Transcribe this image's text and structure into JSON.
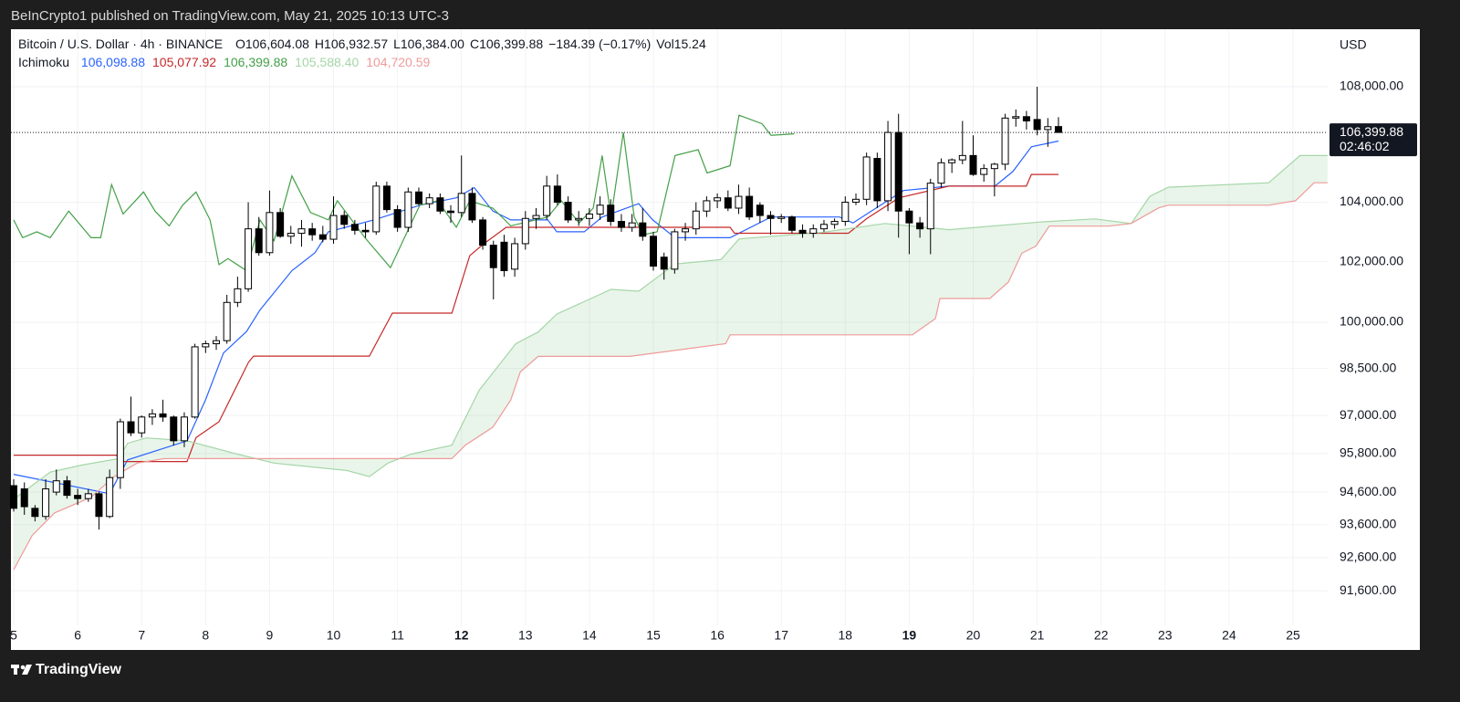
{
  "chart_data": {
    "type": "candlestick",
    "attribution": "BeInCrypto1 published on TradingView.com, May 21, 2025 10:13 UTC-3",
    "brand": "TradingView",
    "symbol": "Bitcoin / U.S. Dollar · 4h · BINANCE",
    "ohlc_labels": [
      "O106,604.08",
      "H106,932.57",
      "L106,384.00",
      "C106,399.88",
      "−184.39 (−0.17%)",
      "Vol15.24"
    ],
    "currency": "USD",
    "last_price_label": "106,399.88",
    "countdown": "02:46:02",
    "log_scale": true,
    "grid": true,
    "ylim": [
      90570,
      110050
    ],
    "yticks": [
      {
        "value": 108000,
        "label": "108,000.00"
      },
      {
        "value": 104000,
        "label": "104,000.00"
      },
      {
        "value": 102000,
        "label": "102,000.00"
      },
      {
        "value": 100000,
        "label": "100,000.00"
      },
      {
        "value": 98500,
        "label": "98,500.00"
      },
      {
        "value": 97000,
        "label": "97,000.00"
      },
      {
        "value": 95800,
        "label": "95,800.00"
      },
      {
        "value": 94600,
        "label": "94,600.00"
      },
      {
        "value": 93600,
        "label": "93,600.00"
      },
      {
        "value": 92600,
        "label": "92,600.00"
      },
      {
        "value": 91600,
        "label": "91,600.00"
      }
    ],
    "xlim": [
      4.957,
      25.542
    ],
    "xticks": [
      5,
      6,
      7,
      8,
      9,
      10,
      11,
      12,
      13,
      14,
      15,
      16,
      17,
      18,
      19,
      20,
      21,
      22,
      23,
      24,
      25
    ],
    "bold_xticks": [
      12,
      19
    ],
    "candles": {
      "up_color": "#ffffff",
      "down_color": "#000000",
      "edge_color": "#000000",
      "x": [
        5,
        5.167,
        5.333,
        5.5,
        5.667,
        5.833,
        6,
        6.167,
        6.333,
        6.5,
        6.667,
        6.833,
        7,
        7.167,
        7.333,
        7.5,
        7.667,
        7.833,
        8,
        8.167,
        8.333,
        8.5,
        8.667,
        8.833,
        9,
        9.167,
        9.333,
        9.5,
        9.667,
        9.833,
        10,
        10.167,
        10.333,
        10.5,
        10.667,
        10.833,
        11,
        11.167,
        11.333,
        11.5,
        11.667,
        11.833,
        12,
        12.167,
        12.333,
        12.5,
        12.667,
        12.833,
        13,
        13.167,
        13.333,
        13.5,
        13.667,
        13.833,
        14,
        14.167,
        14.333,
        14.5,
        14.667,
        14.833,
        15,
        15.167,
        15.333,
        15.5,
        15.667,
        15.833,
        16,
        16.167,
        16.333,
        16.5,
        16.667,
        16.833,
        17,
        17.167,
        17.333,
        17.5,
        17.667,
        17.833,
        18,
        18.167,
        18.333,
        18.5,
        18.667,
        18.833,
        19,
        19.167,
        19.333,
        19.5,
        19.667,
        19.833,
        20,
        20.167,
        20.333,
        20.5,
        20.667,
        20.833,
        21,
        21.167,
        21.333
      ],
      "open": [
        94800,
        94700,
        94100,
        93850,
        94600,
        94950,
        94500,
        94400,
        94550,
        93850,
        95050,
        96800,
        96450,
        96950,
        97050,
        96950,
        96200,
        96950,
        99200,
        99300,
        99400,
        100650,
        101100,
        103100,
        102300,
        103650,
        102850,
        102950,
        103100,
        102900,
        102750,
        103550,
        103250,
        103050,
        103000,
        104550,
        103750,
        103150,
        104350,
        103950,
        104150,
        103700,
        103650,
        104300,
        103400,
        102550,
        102650,
        101750,
        102600,
        103450,
        103550,
        104550,
        104000,
        103400,
        103450,
        103600,
        103900,
        103350,
        103150,
        103300,
        102850,
        102150,
        101750,
        103000,
        103100,
        103700,
        104050,
        104150,
        103800,
        104200,
        103900,
        103550,
        103450,
        103500,
        103050,
        102950,
        103100,
        103250,
        103350,
        104000,
        104100,
        105500,
        104050,
        106400,
        103700,
        103300,
        103100,
        104650,
        105350,
        105450,
        105600,
        104950,
        105150,
        105300,
        106900,
        106950,
        106850,
        106500,
        106604.08
      ],
      "high": [
        95000,
        94900,
        94200,
        95000,
        95300,
        95100,
        94700,
        94700,
        94600,
        95300,
        96900,
        97600,
        97000,
        97200,
        97500,
        97000,
        97100,
        99300,
        99400,
        99550,
        100900,
        101500,
        104000,
        103500,
        104400,
        103800,
        103200,
        103400,
        103300,
        103200,
        104200,
        103700,
        103400,
        103300,
        104700,
        104700,
        103900,
        104500,
        104500,
        104300,
        104300,
        103900,
        105600,
        104500,
        103500,
        102700,
        102900,
        102800,
        103700,
        103800,
        104900,
        104950,
        104200,
        103700,
        103800,
        104200,
        104100,
        103600,
        103600,
        103800,
        103000,
        102300,
        103100,
        103300,
        104000,
        104200,
        104300,
        104400,
        104600,
        104500,
        104000,
        103700,
        103600,
        103550,
        103250,
        103250,
        103400,
        103450,
        104200,
        104300,
        105700,
        105700,
        106800,
        107050,
        103800,
        103500,
        104800,
        105500,
        105500,
        106800,
        106300,
        105300,
        105350,
        107050,
        107200,
        107150,
        108000,
        106900,
        106932.57
      ],
      "low": [
        94000,
        93900,
        93700,
        93750,
        94500,
        94400,
        94200,
        94300,
        93450,
        93800,
        94700,
        96350,
        96300,
        96700,
        96800,
        96050,
        96000,
        96900,
        99000,
        99100,
        99300,
        100500,
        101000,
        102200,
        102200,
        102800,
        102600,
        102500,
        102700,
        102650,
        102600,
        103100,
        102900,
        102800,
        102900,
        103650,
        103000,
        103000,
        103900,
        103800,
        103600,
        103300,
        103500,
        103300,
        102400,
        100750,
        101500,
        101500,
        102400,
        103100,
        103400,
        103900,
        103300,
        103200,
        103200,
        103400,
        103200,
        103000,
        103000,
        102700,
        101700,
        101400,
        101600,
        102700,
        102900,
        103500,
        103800,
        103700,
        103600,
        103400,
        103300,
        102900,
        103300,
        102950,
        102800,
        102800,
        103000,
        103100,
        103200,
        103900,
        103900,
        103800,
        103700,
        102800,
        102250,
        102800,
        102250,
        104500,
        105000,
        105300,
        104900,
        104700,
        104200,
        105100,
        106600,
        106500,
        106300,
        105900,
        106384
      ],
      "close": [
        94100,
        94150,
        93850,
        94700,
        94950,
        94500,
        94400,
        94550,
        93850,
        95050,
        96800,
        96450,
        96950,
        97050,
        96950,
        96200,
        96950,
        99200,
        99300,
        99400,
        100650,
        101100,
        103100,
        102300,
        103650,
        102850,
        102950,
        103100,
        102900,
        102750,
        103550,
        103250,
        103050,
        103000,
        104550,
        103750,
        103150,
        104350,
        103950,
        104150,
        103700,
        103650,
        104300,
        103400,
        102550,
        101800,
        101700,
        102600,
        103450,
        103550,
        104550,
        104000,
        103400,
        103450,
        103600,
        103900,
        103350,
        103150,
        103300,
        102850,
        101850,
        101750,
        103000,
        103100,
        103700,
        104050,
        104150,
        103800,
        104200,
        103500,
        103550,
        103450,
        103500,
        103050,
        102950,
        103100,
        103250,
        103350,
        104000,
        104100,
        105550,
        104050,
        106400,
        103700,
        103300,
        103100,
        104650,
        105350,
        105450,
        105600,
        104950,
        105150,
        105300,
        106900,
        106950,
        106800,
        106500,
        106600,
        106399.88
      ]
    },
    "ichimoku": {
      "label": "Ichimoku",
      "cloud_color": "rgba(76,175,80,0.12)",
      "lines": [
        {
          "color": "#2962ff",
          "legend_value": "106,098.88",
          "x": [
            5.0,
            6.5,
            6.78,
            7.71,
            8.0,
            8.28,
            8.64,
            8.85,
            9.35,
            9.71,
            9.92,
            10.63,
            11.35,
            11.92,
            12.2,
            12.49,
            12.77,
            13.35,
            13.49,
            13.92,
            14.2,
            14.77,
            14.99,
            15.34,
            16.2,
            16.84,
            17.91,
            18.12,
            18.48,
            18.91,
            19.62,
            20.34,
            20.62,
            20.91,
            21.333
          ],
          "values": [
            95150,
            94550,
            95600,
            96200,
            97500,
            99000,
            99700,
            100400,
            101700,
            102300,
            103000,
            103400,
            103900,
            104150,
            104500,
            103700,
            103400,
            103400,
            103000,
            103000,
            103500,
            103950,
            103400,
            102800,
            102800,
            103500,
            103500,
            103300,
            103800,
            104400,
            104550,
            104550,
            105050,
            105900,
            106100
          ]
        },
        {
          "color": "#c62828",
          "legend_value": "105,077.92",
          "x": [
            5.0,
            6.61,
            6.64,
            7.71,
            7.85,
            8.21,
            8.67,
            8.75,
            10.56,
            10.92,
            11.85,
            12.13,
            12.35,
            12.7,
            16.2,
            16.27,
            18.05,
            18.34,
            18.84,
            19.62,
            20.83,
            20.91,
            21.333
          ],
          "values": [
            95750,
            95750,
            95550,
            95550,
            96300,
            96800,
            98700,
            98900,
            98900,
            100300,
            100300,
            102200,
            102600,
            103150,
            103150,
            102950,
            102950,
            103450,
            104150,
            104550,
            104550,
            104950,
            104950
          ]
        },
        {
          "color": "#43a047",
          "legend_value": "106,399.88",
          "x": [
            5.0,
            5.14,
            5.36,
            5.57,
            5.86,
            6.21,
            6.36,
            6.53,
            6.71,
            7.03,
            7.21,
            7.43,
            7.64,
            7.85,
            8.07,
            8.21,
            8.35,
            8.64,
            8.85,
            9.07,
            9.35,
            9.64,
            9.92,
            10.06,
            10.49,
            10.89,
            11.13,
            11.35,
            11.63,
            11.92,
            12.13,
            12.49,
            12.77,
            13.35,
            13.56,
            13.84,
            14.06,
            14.2,
            14.34,
            14.53,
            14.7,
            14.84,
            15.06,
            15.34,
            15.7,
            15.84,
            16.2,
            16.34,
            16.7,
            16.84,
            17.2
          ],
          "values": [
            103400,
            102800,
            103000,
            102800,
            103700,
            102800,
            102800,
            104600,
            103600,
            104350,
            103700,
            103200,
            103900,
            104350,
            103400,
            101900,
            102100,
            101700,
            103400,
            102700,
            104900,
            103650,
            103400,
            104050,
            102800,
            101800,
            102900,
            103900,
            104050,
            103150,
            104050,
            103800,
            103200,
            103500,
            104050,
            103300,
            103800,
            105600,
            103500,
            106400,
            103500,
            102900,
            103000,
            105600,
            105800,
            105000,
            105250,
            107000,
            106700,
            106300,
            106350
          ]
        },
        {
          "color": "#a5d6a7",
          "legend_value": "105,588.40",
          "x": [
            5.0,
            5.57,
            6.07,
            6.64,
            6.78,
            7.07,
            7.71,
            8.5,
            9.07,
            10.21,
            10.56,
            10.85,
            11.21,
            11.85,
            11.99,
            12.28,
            12.56,
            12.85,
            13.2,
            13.49,
            14.34,
            14.77,
            15.34,
            16.06,
            16.34,
            17.62,
            18.62,
            19.62,
            21.05,
            21.9,
            22.47,
            22.76,
            23.05,
            24.62,
            25.11,
            25.54
          ],
          "values": [
            94380,
            95220,
            95440,
            95640,
            96120,
            96290,
            96200,
            95780,
            95500,
            95270,
            95080,
            95500,
            95780,
            96060,
            96630,
            97810,
            98540,
            99300,
            99680,
            100270,
            101080,
            101020,
            101920,
            102070,
            102760,
            102975,
            103280,
            103070,
            103330,
            103435,
            103280,
            104200,
            104510,
            104665,
            105600,
            105600
          ]
        },
        {
          "color": "#ef9a9a",
          "legend_value": "104,720.59",
          "x": [
            5.0,
            5.29,
            5.64,
            6.21,
            6.57,
            6.93,
            7.35,
            11.85,
            12.06,
            12.49,
            12.77,
            12.92,
            13.2,
            14.63,
            16.13,
            16.2,
            19.05,
            19.41,
            19.48,
            20.26,
            20.55,
            20.76,
            20.98,
            21.19,
            22.12,
            22.47,
            22.9,
            23.05,
            24.62,
            25.04,
            25.33,
            25.54
          ],
          "values": [
            92230,
            93270,
            93960,
            94440,
            95080,
            95500,
            95640,
            95640,
            96060,
            96630,
            97490,
            98390,
            98890,
            98890,
            99300,
            99590,
            99590,
            100120,
            100780,
            100780,
            101320,
            102280,
            102520,
            103190,
            103190,
            103280,
            103810,
            103900,
            103900,
            104050,
            104665,
            104665
          ]
        }
      ]
    }
  }
}
